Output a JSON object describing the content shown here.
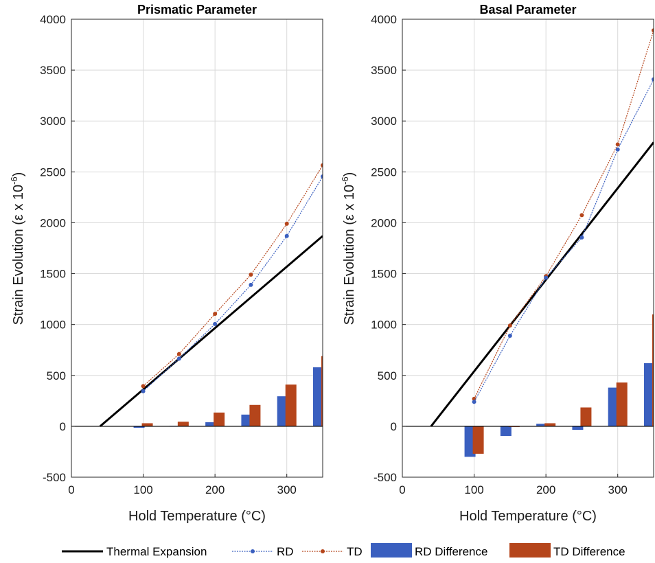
{
  "colors": {
    "rd": "#3a5fbf",
    "td": "#b5451b",
    "thermal": "#000000",
    "grid": "#d9d9d9",
    "axis": "#262626"
  },
  "chart_data": [
    {
      "type": "line",
      "title": "Prismatic Parameter",
      "xlabel": "Hold Temperature (°C)",
      "ylabel_main": "Strain Evolution (ε x 10",
      "ylabel_sup": "-6",
      "ylabel_close": ")",
      "xlim": [
        0,
        350
      ],
      "ylim": [
        -500,
        4000
      ],
      "xticks": [
        0,
        100,
        200,
        300
      ],
      "yticks": [
        -500,
        0,
        500,
        1000,
        1500,
        2000,
        2500,
        3000,
        3500,
        4000
      ],
      "grid": true,
      "thermal_expansion": {
        "x": [
          40,
          350
        ],
        "y": [
          0,
          1870
        ]
      },
      "series": [
        {
          "name": "RD",
          "x": [
            100,
            150,
            200,
            250,
            300,
            350
          ],
          "y": [
            345,
            665,
            1005,
            1390,
            1870,
            2455
          ]
        },
        {
          "name": "TD",
          "x": [
            100,
            150,
            200,
            250,
            300,
            350
          ],
          "y": [
            395,
            710,
            1105,
            1490,
            1990,
            2565
          ]
        }
      ],
      "bars": [
        {
          "name": "RD Difference",
          "x": [
            100,
            150,
            200,
            250,
            300,
            350
          ],
          "values": [
            -15,
            5,
            40,
            115,
            295,
            580
          ]
        },
        {
          "name": "TD Difference",
          "x": [
            100,
            150,
            200,
            250,
            300,
            350
          ],
          "values": [
            30,
            45,
            135,
            210,
            410,
            690
          ]
        }
      ]
    },
    {
      "type": "line",
      "title": "Basal Parameter",
      "xlabel": "Hold Temperature (°C)",
      "ylabel_main": "Strain Evolution (ε x 10",
      "ylabel_sup": "-6",
      "ylabel_close": ")",
      "xlim": [
        0,
        350
      ],
      "ylim": [
        -500,
        4000
      ],
      "xticks": [
        0,
        100,
        200,
        300
      ],
      "yticks": [
        -500,
        0,
        500,
        1000,
        1500,
        2000,
        2500,
        3000,
        3500,
        4000
      ],
      "grid": true,
      "thermal_expansion": {
        "x": [
          40,
          350
        ],
        "y": [
          0,
          2790
        ]
      },
      "series": [
        {
          "name": "RD",
          "x": [
            100,
            150,
            200,
            250,
            300,
            350
          ],
          "y": [
            240,
            890,
            1460,
            1855,
            2720,
            3410
          ]
        },
        {
          "name": "TD",
          "x": [
            100,
            150,
            200,
            250,
            300,
            350
          ],
          "y": [
            270,
            990,
            1475,
            2075,
            2770,
            3890
          ]
        }
      ],
      "bars": [
        {
          "name": "RD Difference",
          "x": [
            100,
            150,
            200,
            250,
            300,
            350
          ],
          "values": [
            -300,
            -95,
            25,
            -35,
            380,
            620
          ]
        },
        {
          "name": "TD Difference",
          "x": [
            100,
            150,
            200,
            250,
            300,
            350
          ],
          "values": [
            -270,
            -5,
            30,
            185,
            430,
            1100
          ]
        }
      ]
    }
  ],
  "legend": [
    {
      "key": "thermal",
      "label": "Thermal Expansion"
    },
    {
      "key": "rd",
      "label": "RD"
    },
    {
      "key": "td",
      "label": "TD"
    },
    {
      "key": "rd_bar",
      "label": "RD Difference"
    },
    {
      "key": "td_bar",
      "label": "TD Difference"
    }
  ]
}
